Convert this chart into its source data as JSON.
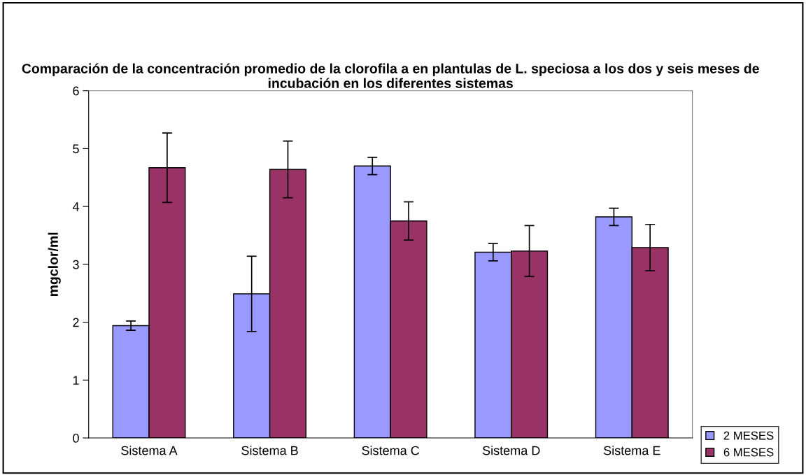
{
  "chart_data": {
    "type": "bar",
    "title": "Comparación de la concentración promedio de la clorofila a en plantulas de L. speciosa a los dos y seis meses de incubación en los diferentes sistemas",
    "ylabel": "mgclor/ml",
    "categories": [
      "Sistema A",
      "Sistema B",
      "Sistema C",
      "Sistema D",
      "Sistema E"
    ],
    "series": [
      {
        "name": "2 MESES",
        "color": "#9999ff",
        "values": [
          1.94,
          2.49,
          4.7,
          3.21,
          3.82
        ],
        "errors": [
          0.08,
          0.65,
          0.15,
          0.15,
          0.15
        ]
      },
      {
        "name": "6 MESES",
        "color": "#993366",
        "values": [
          4.67,
          4.64,
          3.75,
          3.23,
          3.29
        ],
        "errors": [
          0.6,
          0.49,
          0.33,
          0.44,
          0.4
        ]
      }
    ],
    "ylim": [
      0,
      6
    ],
    "yticks": [
      0,
      1,
      2,
      3,
      4,
      5,
      6
    ],
    "grid": false,
    "legend": "bottom right"
  }
}
